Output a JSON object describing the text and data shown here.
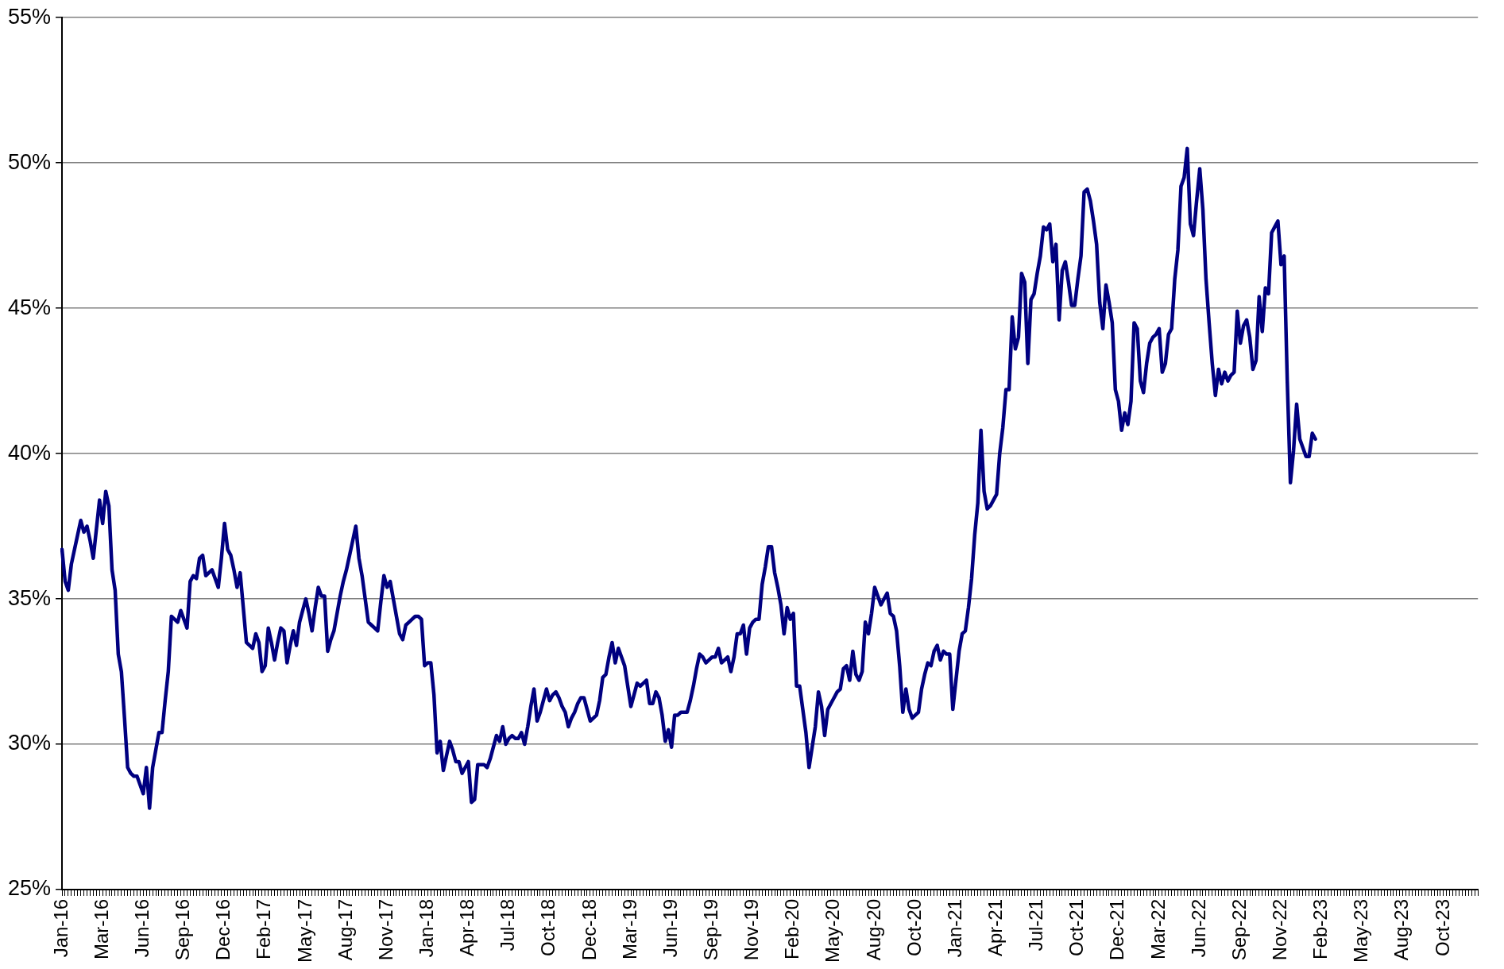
{
  "chart_data": {
    "type": "line",
    "categories": [
      "Jan-16",
      null,
      null,
      null,
      null,
      null,
      null,
      null,
      null,
      null,
      null,
      null,
      null,
      "Mar-16",
      null,
      null,
      null,
      null,
      null,
      null,
      null,
      null,
      null,
      null,
      null,
      null,
      "Jun-16",
      null,
      null,
      null,
      null,
      null,
      null,
      null,
      null,
      null,
      null,
      null,
      null,
      "Sep-16",
      null,
      null,
      null,
      null,
      null,
      null,
      null,
      null,
      null,
      null,
      null,
      null,
      "Dec-16",
      null,
      null,
      null,
      null,
      null,
      null,
      null,
      null,
      null,
      null,
      null,
      null,
      "Feb-17",
      null,
      null,
      null,
      null,
      null,
      null,
      null,
      null,
      null,
      null,
      null,
      null,
      "May-17",
      null,
      null,
      null,
      null,
      null,
      null,
      null,
      null,
      null,
      null,
      null,
      null,
      "Aug-17",
      null,
      null,
      null,
      null,
      null,
      null,
      null,
      null,
      null,
      null,
      null,
      null,
      "Nov-17",
      null,
      null,
      null,
      null,
      null,
      null,
      null,
      null,
      null,
      null,
      null,
      null,
      "Jan-18",
      null,
      null,
      null,
      null,
      null,
      null,
      null,
      null,
      null,
      null,
      null,
      null,
      "Apr-18",
      null,
      null,
      null,
      null,
      null,
      null,
      null,
      null,
      null,
      null,
      null,
      null,
      "Jul-18",
      null,
      null,
      null,
      null,
      null,
      null,
      null,
      null,
      null,
      null,
      null,
      null,
      "Oct-18",
      null,
      null,
      null,
      null,
      null,
      null,
      null,
      null,
      null,
      null,
      null,
      null,
      "Dec-18",
      null,
      null,
      null,
      null,
      null,
      null,
      null,
      null,
      null,
      null,
      null,
      null,
      "Mar-19",
      null,
      null,
      null,
      null,
      null,
      null,
      null,
      null,
      null,
      null,
      null,
      null,
      "Jun-19",
      null,
      null,
      null,
      null,
      null,
      null,
      null,
      null,
      null,
      null,
      null,
      null,
      "Sep-19",
      null,
      null,
      null,
      null,
      null,
      null,
      null,
      null,
      null,
      null,
      null,
      null,
      "Nov-19",
      null,
      null,
      null,
      null,
      null,
      null,
      null,
      null,
      null,
      null,
      null,
      null,
      "Feb-20",
      null,
      null,
      null,
      null,
      null,
      null,
      null,
      null,
      null,
      null,
      null,
      null,
      "May-20",
      null,
      null,
      null,
      null,
      null,
      null,
      null,
      null,
      null,
      null,
      null,
      null,
      "Aug-20",
      null,
      null,
      null,
      null,
      null,
      null,
      null,
      null,
      null,
      null,
      null,
      null,
      "Oct-20",
      null,
      null,
      null,
      null,
      null,
      null,
      null,
      null,
      null,
      null,
      null,
      null,
      "Jan-21",
      null,
      null,
      null,
      null,
      null,
      null,
      null,
      null,
      null,
      null,
      null,
      null,
      "Apr-21",
      null,
      null,
      null,
      null,
      null,
      null,
      null,
      null,
      null,
      null,
      null,
      null,
      "Jul-21",
      null,
      null,
      null,
      null,
      null,
      null,
      null,
      null,
      null,
      null,
      null,
      null,
      "Oct-21",
      null,
      null,
      null,
      null,
      null,
      null,
      null,
      null,
      null,
      null,
      null,
      null,
      "Dec-21",
      null,
      null,
      null,
      null,
      null,
      null,
      null,
      null,
      null,
      null,
      null,
      null,
      "Mar-22",
      null,
      null,
      null,
      null,
      null,
      null,
      null,
      null,
      null,
      null,
      null,
      null,
      "Jun-22",
      null,
      null,
      null,
      null,
      null,
      null,
      null,
      null,
      null,
      null,
      null,
      null,
      "Sep-22",
      null,
      null,
      null,
      null,
      null,
      null,
      null,
      null,
      null,
      null,
      null,
      null,
      "Nov-22",
      null,
      null,
      null,
      null,
      null,
      null,
      null,
      null,
      null,
      null,
      null,
      null,
      "Feb-23",
      null,
      null,
      null,
      null,
      null,
      null,
      null,
      null,
      null,
      null,
      null,
      null,
      "May-23",
      null,
      null,
      null,
      null,
      null,
      null,
      null,
      null,
      null,
      null,
      null,
      null,
      "Aug-23",
      null,
      null,
      null,
      null,
      null,
      null,
      null,
      null,
      null,
      null,
      null,
      null,
      "Oct-23",
      null,
      null,
      null,
      null,
      null,
      null,
      null,
      null,
      null,
      null,
      null
    ],
    "ylim": [
      25,
      55
    ],
    "yticks": [
      {
        "value": 25,
        "label": "25%"
      },
      {
        "value": 30,
        "label": "30%"
      },
      {
        "value": 35,
        "label": "35%"
      },
      {
        "value": 40,
        "label": "40%"
      },
      {
        "value": 45,
        "label": "45%"
      },
      {
        "value": 50,
        "label": "50%"
      },
      {
        "value": 55,
        "label": "55%"
      }
    ],
    "grid": "y",
    "series": [
      {
        "color": "#000080",
        "values": [
          36.7,
          35.6,
          35.3,
          36.2,
          36.7,
          37.2,
          37.7,
          37.3,
          37.5,
          37.0,
          36.4,
          37.4,
          38.4,
          37.6,
          38.7,
          38.2,
          36.0,
          35.3,
          33.1,
          32.5,
          30.9,
          29.2,
          29.0,
          28.9,
          28.9,
          28.6,
          28.3,
          29.2,
          27.8,
          29.2,
          29.8,
          30.4,
          30.4,
          31.5,
          32.5,
          34.4,
          34.3,
          34.2,
          34.6,
          34.3,
          34.0,
          35.6,
          35.8,
          35.7,
          36.4,
          36.5,
          35.8,
          35.9,
          36.0,
          35.7,
          35.4,
          36.4,
          37.6,
          36.7,
          36.5,
          36.0,
          35.4,
          35.9,
          34.7,
          33.5,
          33.4,
          33.3,
          33.8,
          33.5,
          32.5,
          32.7,
          34.0,
          33.5,
          32.9,
          33.5,
          34.0,
          33.9,
          32.8,
          33.4,
          33.9,
          33.4,
          34.2,
          34.6,
          35.0,
          34.5,
          33.9,
          34.7,
          35.4,
          35.1,
          35.1,
          33.2,
          33.6,
          33.9,
          34.5,
          35.1,
          35.6,
          36.0,
          36.5,
          37.0,
          37.5,
          36.4,
          35.8,
          35.0,
          34.2,
          34.1,
          34.0,
          33.9,
          34.9,
          35.8,
          35.4,
          35.6,
          35.0,
          34.4,
          33.8,
          33.6,
          34.1,
          34.2,
          34.3,
          34.4,
          34.4,
          34.3,
          32.7,
          32.8,
          32.8,
          31.7,
          29.7,
          30.1,
          29.1,
          29.6,
          30.1,
          29.8,
          29.4,
          29.4,
          29.0,
          29.2,
          29.4,
          28.0,
          28.1,
          29.3,
          29.3,
          29.3,
          29.2,
          29.5,
          29.9,
          30.3,
          30.1,
          30.6,
          30.0,
          30.2,
          30.3,
          30.2,
          30.2,
          30.4,
          30.0,
          30.6,
          31.3,
          31.9,
          30.8,
          31.1,
          31.5,
          31.9,
          31.5,
          31.7,
          31.8,
          31.6,
          31.3,
          31.1,
          30.6,
          30.9,
          31.1,
          31.4,
          31.6,
          31.6,
          31.2,
          30.8,
          30.9,
          31.0,
          31.5,
          32.3,
          32.4,
          33.0,
          33.5,
          32.8,
          33.3,
          33.0,
          32.7,
          32.0,
          31.3,
          31.7,
          32.1,
          32.0,
          32.1,
          32.2,
          31.4,
          31.4,
          31.8,
          31.6,
          31.0,
          30.1,
          30.5,
          29.9,
          31.0,
          31.0,
          31.1,
          31.1,
          31.1,
          31.5,
          32.0,
          32.6,
          33.1,
          33.0,
          32.8,
          32.9,
          33.0,
          33.0,
          33.3,
          32.8,
          32.9,
          33.0,
          32.5,
          33.0,
          33.8,
          33.8,
          34.1,
          33.1,
          34.0,
          34.2,
          34.3,
          34.3,
          35.5,
          36.1,
          36.8,
          36.8,
          35.9,
          35.4,
          34.8,
          33.8,
          34.7,
          34.3,
          34.5,
          32.0,
          32.0,
          31.2,
          30.4,
          29.2,
          29.9,
          30.6,
          31.8,
          31.3,
          30.3,
          31.2,
          31.4,
          31.6,
          31.8,
          31.9,
          32.6,
          32.7,
          32.2,
          33.2,
          32.4,
          32.2,
          32.5,
          34.2,
          33.8,
          34.5,
          35.4,
          35.1,
          34.8,
          35.0,
          35.2,
          34.5,
          34.4,
          33.9,
          32.7,
          31.1,
          31.9,
          31.2,
          30.9,
          31.0,
          31.1,
          31.9,
          32.4,
          32.8,
          32.7,
          33.2,
          33.4,
          32.9,
          33.2,
          33.1,
          33.1,
          31.2,
          32.2,
          33.2,
          33.8,
          33.9,
          34.7,
          35.7,
          37.2,
          38.3,
          40.8,
          38.7,
          38.1,
          38.2,
          38.4,
          38.6,
          40.0,
          40.9,
          42.2,
          42.2,
          44.7,
          43.6,
          44.0,
          46.2,
          45.9,
          43.1,
          45.3,
          45.5,
          46.2,
          46.8,
          47.8,
          47.7,
          47.9,
          46.6,
          47.2,
          44.6,
          46.3,
          46.6,
          45.9,
          45.1,
          45.1,
          46.0,
          46.8,
          49.0,
          49.1,
          48.7,
          48.0,
          47.2,
          45.2,
          44.3,
          45.8,
          45.2,
          44.5,
          42.2,
          41.8,
          40.8,
          41.4,
          41.0,
          41.8,
          44.5,
          44.3,
          42.5,
          42.1,
          43.1,
          43.8,
          44.0,
          44.1,
          44.3,
          42.8,
          43.1,
          44.1,
          44.3,
          46.0,
          47.0,
          49.2,
          49.5,
          50.5,
          47.9,
          47.5,
          48.7,
          49.8,
          48.4,
          46.0,
          44.5,
          43.1,
          42.0,
          42.9,
          42.4,
          42.8,
          42.5,
          42.7,
          42.8,
          44.9,
          43.8,
          44.4,
          44.6,
          44.0,
          42.9,
          43.2,
          45.4,
          44.2,
          45.7,
          45.5,
          47.6,
          47.8,
          48.0,
          46.5,
          46.8,
          42.5,
          39.0,
          40.1,
          41.7,
          40.5,
          40.2,
          39.9,
          39.9,
          40.7,
          40.5,
          null,
          null,
          null,
          null,
          null,
          null,
          null,
          null,
          null,
          null,
          null,
          null,
          null,
          null,
          null,
          null,
          null,
          null,
          null,
          null,
          null,
          null,
          null,
          null,
          null,
          null,
          null,
          null,
          null,
          null,
          null,
          null,
          null,
          null,
          null,
          null,
          null,
          null,
          null,
          null,
          null,
          null,
          null,
          null,
          null,
          null,
          null,
          null,
          null,
          null,
          null,
          null
        ]
      }
    ]
  }
}
